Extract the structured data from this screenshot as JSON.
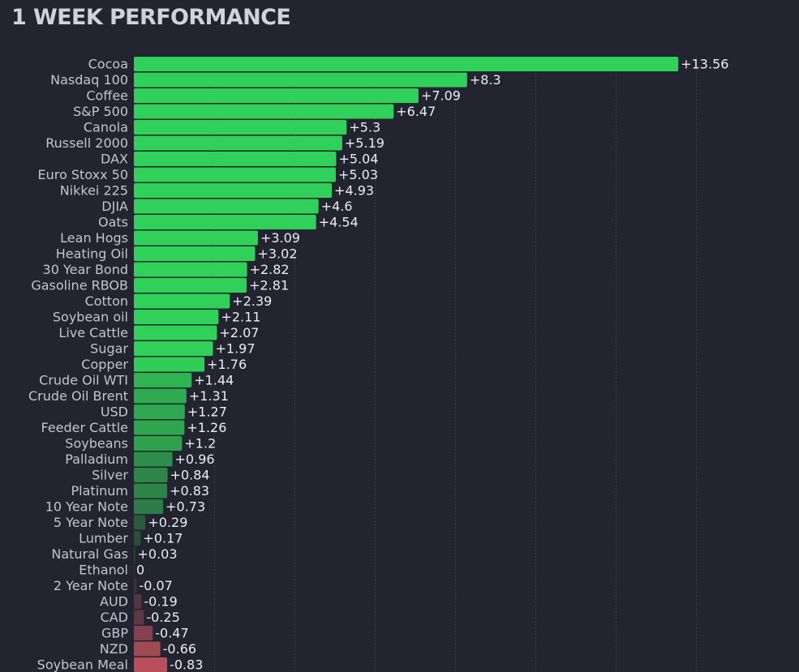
{
  "title": "1 WEEK PERFORMANCE",
  "chart_data": {
    "type": "bar",
    "orientation": "horizontal",
    "title": "1 WEEK PERFORMANCE",
    "xlabel": "",
    "ylabel": "",
    "grid": true,
    "xlim": [
      -1,
      14
    ],
    "categories": [
      "Cocoa",
      "Nasdaq 100",
      "Coffee",
      "S&P 500",
      "Canola",
      "Russell 2000",
      "DAX",
      "Euro Stoxx 50",
      "Nikkei 225",
      "DJIA",
      "Oats",
      "Lean Hogs",
      "Heating Oil",
      "30 Year Bond",
      "Gasoline RBOB",
      "Cotton",
      "Soybean oil",
      "Live Cattle",
      "Sugar",
      "Copper",
      "Crude Oil WTI",
      "Crude Oil Brent",
      "USD",
      "Feeder Cattle",
      "Soybeans",
      "Palladium",
      "Silver",
      "Platinum",
      "10 Year Note",
      "5 Year Note",
      "Lumber",
      "Natural Gas",
      "Ethanol",
      "2 Year Note",
      "AUD",
      "CAD",
      "GBP",
      "NZD",
      "Soybean Meal"
    ],
    "values": [
      13.56,
      8.3,
      7.09,
      6.47,
      5.3,
      5.19,
      5.04,
      5.03,
      4.93,
      4.6,
      4.54,
      3.09,
      3.02,
      2.82,
      2.81,
      2.39,
      2.11,
      2.07,
      1.97,
      1.76,
      1.44,
      1.31,
      1.27,
      1.26,
      1.2,
      0.96,
      0.84,
      0.83,
      0.73,
      0.29,
      0.17,
      0.03,
      0,
      -0.07,
      -0.19,
      -0.25,
      -0.47,
      -0.66,
      -0.83
    ],
    "value_labels": [
      "+13.56",
      "+8.3",
      "+7.09",
      "+6.47",
      "+5.3",
      "+5.19",
      "+5.04",
      "+5.03",
      "+4.93",
      "+4.6",
      "+4.54",
      "+3.09",
      "+3.02",
      "+2.82",
      "+2.81",
      "+2.39",
      "+2.11",
      "+2.07",
      "+1.97",
      "+1.76",
      "+1.44",
      "+1.31",
      "+1.27",
      "+1.26",
      "+1.2",
      "+0.96",
      "+0.84",
      "+0.83",
      "+0.73",
      "+0.29",
      "+0.17",
      "+0.03",
      "0",
      "-0.07",
      "-0.19",
      "-0.25",
      "-0.47",
      "-0.66",
      "-0.83"
    ],
    "colors": {
      "positive_strong": "#30d158",
      "positive_weak": "#2a4a3a",
      "negative_weak": "#3e2f3c",
      "negative_strong": "#b7505a",
      "neutral": "#3d4150",
      "background": "#222430",
      "grid": "#3a3c48",
      "title": "#d2d3d9",
      "category_text": "#c2c5cf",
      "value_text": "#ececf1"
    }
  }
}
